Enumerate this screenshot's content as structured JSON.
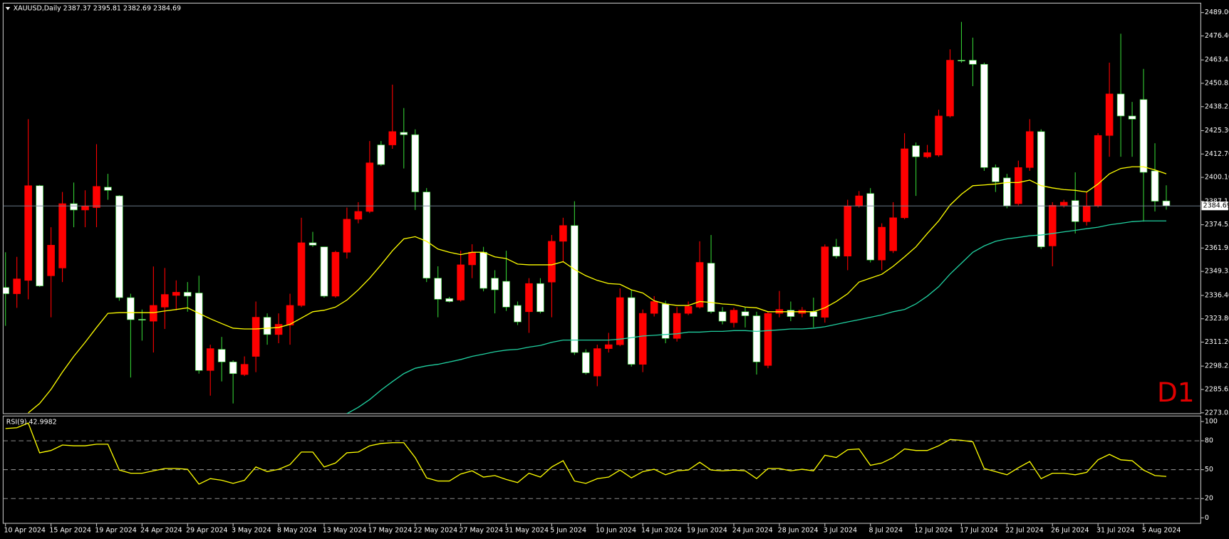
{
  "chart_data": {
    "type": "candlestick",
    "title": "XAUUSD,Daily 2387.37 2395.81 2382.69 2384.69",
    "timeframe_label": "D1",
    "categories": [
      "10 Apr 2024",
      null,
      null,
      null,
      "15 Apr 2024",
      null,
      null,
      null,
      "19 Apr 2024",
      null,
      null,
      null,
      "24 Apr 2024",
      null,
      null,
      null,
      "29 Apr 2024",
      null,
      null,
      null,
      "3 May 2024",
      null,
      null,
      null,
      "8 May 2024",
      null,
      null,
      null,
      "13 May 2024",
      null,
      null,
      null,
      "17 May 2024",
      null,
      null,
      null,
      "22 May 2024",
      null,
      null,
      null,
      "27 May 2024",
      null,
      null,
      null,
      "31 May 2024",
      null,
      null,
      null,
      "5 Jun 2024",
      null,
      null,
      null,
      "10 Jun 2024",
      null,
      null,
      null,
      "14 Jun 2024",
      null,
      null,
      null,
      "19 Jun 2024",
      null,
      null,
      null,
      "24 Jun 2024",
      null,
      null,
      null,
      "28 Jun 2024",
      null,
      null,
      null,
      "3 Jul 2024",
      null,
      null,
      null,
      "8 Jul 2024",
      null,
      null,
      null,
      "12 Jul 2024",
      null,
      null,
      null,
      "17 Jul 2024",
      null,
      null,
      null,
      "22 Jul 2024",
      null,
      null,
      null,
      "26 Jul 2024",
      null,
      null,
      null,
      "31 Jul 2024",
      null,
      null,
      null,
      "5 Aug 2024",
      null,
      null
    ],
    "open": [
      2340.7,
      2337.3,
      2344.5,
      2395.6,
      2347,
      2351.2,
      2385.9,
      2382.5,
      2383.8,
      2394.8,
      2390.1,
      2335.2,
      2323.5,
      2322.5,
      2330.1,
      2336.4,
      2338.1,
      2337.7,
      2295.9,
      2307.3,
      2300.5,
      2293.7,
      2303.5,
      2324.6,
      2315.3,
      2320.4,
      2331,
      2364.8,
      2362.6,
      2336,
      2359.7,
      2377.5,
      2381.7,
      2417.6,
      2417.6,
      2424.4,
      2423.1,
      2392.2,
      2345.7,
      2334.7,
      2333.9,
      2352.9,
      2359.7,
      2345.7,
      2344,
      2331,
      2327.6,
      2342.8,
      2343.6,
      2365.6,
      2374.1,
      2305.6,
      2292.9,
      2307.7,
      2309.8,
      2335.2,
      2299.2,
      2326.7,
      2331.8,
      2313.2,
      2326.7,
      2330.1,
      2353.8,
      2327.6,
      2321.7,
      2327.6,
      2325.4,
      2298.6,
      2326.7,
      2328.4,
      2326.7,
      2327.6,
      2324.6,
      2362.6,
      2357.6,
      2384.6,
      2391.4,
      2355.5,
      2360.5,
      2378.3,
      2417.2,
      2411.2,
      2412.1,
      2433.2,
      2463.3,
      2463.3,
      2461.1,
      2405.4,
      2399.8,
      2385.9,
      2405.4,
      2424.8,
      2363.1,
      2385,
      2387.6,
      2376.2,
      2384.6,
      2422.7,
      2445.1,
      2433.2,
      2442.1,
      2403.6,
      2387.37
    ],
    "high": [
      2359.7,
      2357.2,
      2431.5,
      2396,
      2373.2,
      2392.2,
      2397.3,
      2393.1,
      2418.0,
      2402,
      2390.5,
      2337.3,
      2328.8,
      2352,
      2351.2,
      2344.5,
      2343.6,
      2347,
      2309.8,
      2314,
      2301.4,
      2303.5,
      2333.1,
      2326.7,
      2326.7,
      2337.3,
      2378.3,
      2370.7,
      2362.6,
      2360.5,
      2383.8,
      2386.7,
      2419.7,
      2419.7,
      2450.1,
      2437.5,
      2426,
      2394.3,
      2352.1,
      2335.6,
      2360.5,
      2364,
      2362.6,
      2350,
      2360.5,
      2333.1,
      2345.7,
      2345.7,
      2369,
      2378.3,
      2387.2,
      2307.3,
      2309.8,
      2316.2,
      2340.2,
      2339.4,
      2328.8,
      2336,
      2333.5,
      2330.1,
      2333.1,
      2365.6,
      2369,
      2330.1,
      2329.7,
      2330.1,
      2327.6,
      2327.6,
      2338.8,
      2333.1,
      2330.1,
      2335.2,
      2363.9,
      2366.9,
      2388,
      2392.7,
      2394.3,
      2375.3,
      2386.7,
      2423.9,
      2418.9,
      2417.6,
      2436.6,
      2469.2,
      2484,
      2475.5,
      2462,
      2407,
      2402,
      2409.1,
      2431.5,
      2426,
      2386.7,
      2388,
      2402.8,
      2392.2,
      2423.9,
      2462,
      2477.6,
      2440.8,
      2458.6,
      2418.5,
      2395.81
    ],
    "low": [
      2320.0,
      2329.7,
      2334.3,
      2341,
      2324.6,
      2343.6,
      2373.2,
      2373.2,
      2373.2,
      2388,
      2333.5,
      2292.1,
      2312,
      2305.6,
      2318.3,
      2328.4,
      2327.6,
      2294.2,
      2282.3,
      2290,
      2278.1,
      2292.9,
      2295,
      2309.8,
      2310.6,
      2309.8,
      2330.1,
      2362.6,
      2335.2,
      2335.2,
      2356.3,
      2375.3,
      2380.8,
      2406.2,
      2415.5,
      2404.9,
      2382.5,
      2343.6,
      2324.6,
      2332.6,
      2333.1,
      2345.7,
      2338.6,
      2326.7,
      2328,
      2320.4,
      2316.2,
      2326.7,
      2324.6,
      2354.2,
      2304.3,
      2293.7,
      2287.4,
      2305.6,
      2309,
      2298,
      2295,
      2325,
      2310.6,
      2311.5,
      2325.8,
      2329.3,
      2326.7,
      2320.8,
      2319.1,
      2319.1,
      2293.7,
      2297.1,
      2324.6,
      2322.5,
      2324.6,
      2319.1,
      2321.7,
      2356.3,
      2350,
      2383.8,
      2354.2,
      2350,
      2359.3,
      2377.5,
      2390.1,
      2410.4,
      2411.2,
      2432.4,
      2462,
      2449.3,
      2403.6,
      2392.2,
      2383.4,
      2385,
      2403.6,
      2361.4,
      2352.1,
      2383.8,
      2369.8,
      2374.1,
      2383.8,
      2411.2,
      2411.2,
      2411.2,
      2376.2,
      2381.7,
      2382.69
    ],
    "close": [
      2337.3,
      2345.3,
      2395.6,
      2341.5,
      2363.5,
      2385.9,
      2382.5,
      2384.6,
      2395.2,
      2393.1,
      2335.2,
      2323.3,
      2323.1,
      2331,
      2336.9,
      2338.1,
      2336,
      2295.9,
      2307.7,
      2300.5,
      2294.2,
      2299.2,
      2324.6,
      2315.3,
      2320.8,
      2331,
      2364.8,
      2363.5,
      2336,
      2359.7,
      2377.5,
      2381.7,
      2407.9,
      2407,
      2424.8,
      2423.1,
      2392.2,
      2345.7,
      2334.3,
      2333.1,
      2352.9,
      2359.7,
      2340.2,
      2339.4,
      2330.1,
      2322.1,
      2342.8,
      2327.6,
      2365.6,
      2374.1,
      2305.6,
      2294.6,
      2307.7,
      2309.8,
      2335.2,
      2299.2,
      2326.7,
      2333.1,
      2313.2,
      2326.7,
      2330.5,
      2354.2,
      2327.6,
      2322.5,
      2328.4,
      2325.4,
      2300.5,
      2326.7,
      2328.8,
      2325,
      2328.4,
      2325,
      2362.6,
      2357.6,
      2384.6,
      2390.1,
      2355.5,
      2373.2,
      2378.3,
      2415.5,
      2411.2,
      2413.4,
      2433.2,
      2463.3,
      2462.9,
      2461.1,
      2405.4,
      2397.7,
      2384.6,
      2405.4,
      2424.8,
      2362.6,
      2385,
      2386.7,
      2376.2,
      2384.6,
      2422.7,
      2445.1,
      2433.2,
      2431.5,
      2402.8,
      2387.2,
      2384.69
    ],
    "up_color": "#ff0000",
    "down_color": "#ffffff",
    "down_wick_color": "#33cc33",
    "overlays": [
      {
        "color": "#ffff00",
        "values": [
          null,
          null,
          2273.0,
          2278.1,
          2285.7,
          2295.0,
          2303.5,
          2311.1,
          2319.1,
          2326.7,
          2327.1,
          2327.1,
          2327.1,
          2327.1,
          2328.0,
          2328.8,
          2329.7,
          2326.7,
          2323.8,
          2321.2,
          2318.7,
          2318.3,
          2318.3,
          2318.7,
          2319.1,
          2320.8,
          2324.2,
          2327.6,
          2328.4,
          2330.1,
          2333.9,
          2339.4,
          2345.7,
          2352.9,
          2360.5,
          2366.9,
          2368.1,
          2365.6,
          2361.4,
          2359.7,
          2358.4,
          2359.7,
          2359.7,
          2357.2,
          2356.3,
          2353.3,
          2352.9,
          2352.9,
          2352.9,
          2354.6,
          2350.4,
          2347.0,
          2344.5,
          2342.8,
          2342.4,
          2339.4,
          2337.7,
          2333.5,
          2331.8,
          2331.0,
          2331.0,
          2333.1,
          2332.6,
          2331.8,
          2331.4,
          2330.1,
          2329.7,
          2327.6,
          2327.6,
          2327.6,
          2327.6,
          2327.6,
          2329.7,
          2333.1,
          2337.3,
          2343.6,
          2345.7,
          2347.8,
          2352.1,
          2357.2,
          2362.6,
          2369.8,
          2376.6,
          2385.1,
          2391.0,
          2395.6,
          2396.0,
          2396.5,
          2397.3,
          2397.3,
          2398.6,
          2395.6,
          2394.4,
          2393.5,
          2393.1,
          2392.2,
          2396.5,
          2402.0,
          2404.9,
          2405.8,
          2405.8,
          2404.1,
          2402.0
        ]
      },
      {
        "color": "#20d0a0",
        "values": [
          null,
          null,
          null,
          null,
          null,
          null,
          null,
          null,
          null,
          null,
          null,
          null,
          null,
          null,
          null,
          null,
          null,
          null,
          null,
          null,
          null,
          null,
          null,
          null,
          null,
          null,
          null,
          null,
          null,
          null,
          2272.6,
          2276.0,
          2280.2,
          2285.3,
          2289.9,
          2294.2,
          2297.1,
          2298.4,
          2299.2,
          2300.5,
          2301.8,
          2303.5,
          2304.7,
          2306.0,
          2306.9,
          2307.3,
          2308.5,
          2309.4,
          2311.1,
          2312.3,
          2312.3,
          2312.3,
          2312.3,
          2312.3,
          2312.8,
          2313.6,
          2314.5,
          2314.9,
          2315.3,
          2315.7,
          2316.6,
          2316.6,
          2317.0,
          2317.0,
          2317.4,
          2317.4,
          2317.0,
          2317.4,
          2317.8,
          2318.3,
          2318.3,
          2318.7,
          2319.5,
          2320.8,
          2322.1,
          2323.3,
          2324.6,
          2325.9,
          2327.6,
          2328.8,
          2331.8,
          2336.0,
          2341.1,
          2347.9,
          2353.8,
          2359.7,
          2363.1,
          2365.6,
          2366.9,
          2367.7,
          2368.6,
          2369.0,
          2369.8,
          2370.7,
          2371.5,
          2372.4,
          2373.2,
          2374.5,
          2375.3,
          2376.2,
          2376.6,
          2376.6,
          2376.6
        ]
      }
    ],
    "last_price": 2384.69,
    "last_price_color": "#778899",
    "ylim": [
      2272.6,
      2494.1
    ],
    "yticks": [
      {
        "value": 2489,
        "label": "2489.00"
      },
      {
        "value": 2476.4,
        "label": "2476.40"
      },
      2463.45,
      2450.85,
      2438.25,
      {
        "value": 2425.3,
        "label": "2425.30"
      },
      {
        "value": 2412.7,
        "label": "2412.70"
      },
      {
        "value": 2400.1,
        "label": "2400.10"
      },
      2387.15,
      2374.55,
      2361.95,
      2349.35,
      {
        "value": 2336.4,
        "label": "2336.40"
      },
      {
        "value": 2323.8,
        "label": "2323.80"
      },
      {
        "value": 2311.2,
        "label": "2311.20"
      },
      2298.25,
      2285.65,
      2273.05
    ],
    "grid": false,
    "indicator": {
      "type": "line",
      "title": "RSI(9) 42.9982",
      "color": "#ffff00",
      "values": [
        92.7,
        93.5,
        98.4,
        67.5,
        69.9,
        75.6,
        74.8,
        74.8,
        76.4,
        76.4,
        49.6,
        46.3,
        46.3,
        48.8,
        51.2,
        51.2,
        50.4,
        35.0,
        40.7,
        39.0,
        35.8,
        39.0,
        52.8,
        48.0,
        50.4,
        55.3,
        68.3,
        68.3,
        52.8,
        56.9,
        67.5,
        68.3,
        74.8,
        77.2,
        78.0,
        78.0,
        62.6,
        41.5,
        38.2,
        38.2,
        45.5,
        48.8,
        42.3,
        43.9,
        39.8,
        36.6,
        46.3,
        42.3,
        52.8,
        59.3,
        38.2,
        35.8,
        40.7,
        42.3,
        49.6,
        41.5,
        48.0,
        50.4,
        44.7,
        48.8,
        49.6,
        57.7,
        49.6,
        48.8,
        49.6,
        48.8,
        40.7,
        51.2,
        51.2,
        48.8,
        50.4,
        48.8,
        65.0,
        62.6,
        70.7,
        71.5,
        54.5,
        56.9,
        62.6,
        71.5,
        69.9,
        69.9,
        74.8,
        81.3,
        80.5,
        78.9,
        51.2,
        48.0,
        44.7,
        52.0,
        58.5,
        40.7,
        46.3,
        46.3,
        44.7,
        47.2,
        60.2,
        65.9,
        60.2,
        59.3,
        49.6,
        43.9,
        42.9982
      ],
      "ylim": [
        -5.7,
        105.7
      ],
      "yticks": [
        100,
        80,
        50,
        20,
        0
      ],
      "levels": [
        80,
        50,
        20
      ]
    }
  }
}
